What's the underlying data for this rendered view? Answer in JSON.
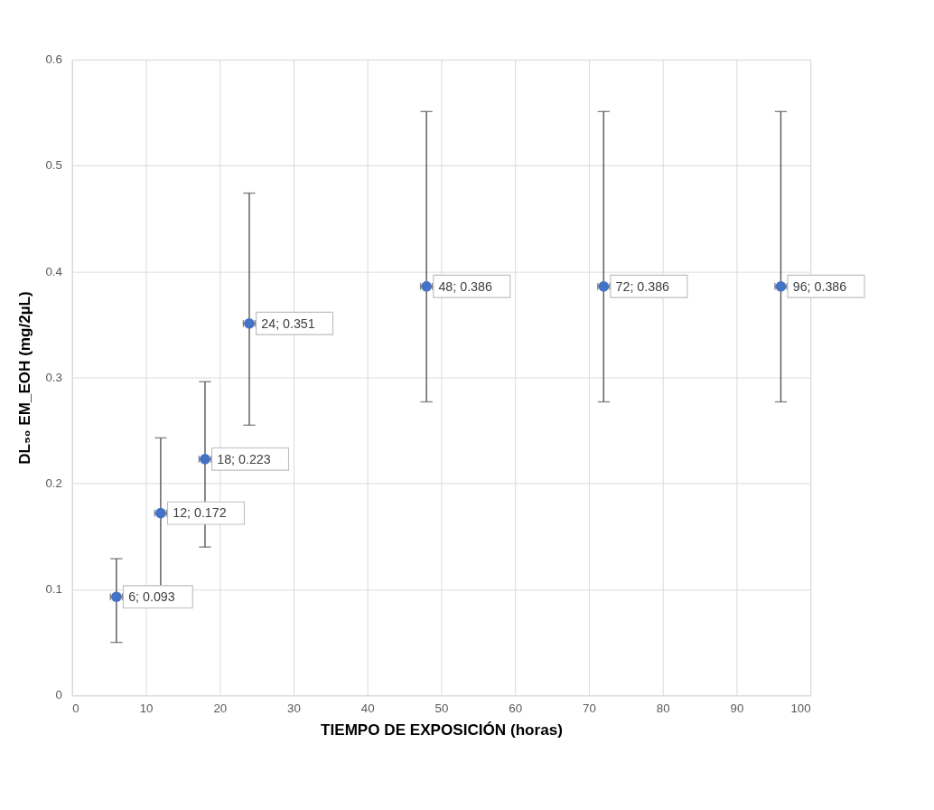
{
  "chart_data": {
    "type": "scatter",
    "xlabel": "TIEMPO DE EXPOSICIÓN (horas)",
    "ylabel": "DL₅₀ EM_EOH (mg/2µL)",
    "x": [
      6,
      12,
      18,
      24,
      48,
      72,
      96
    ],
    "series": [
      {
        "color": "#4472c4",
        "values": [
          0.093,
          0.172,
          0.223,
          0.351,
          0.386,
          0.386,
          0.386
        ],
        "errors": [
          [
            0.05,
            0.129
          ],
          [
            0.101,
            0.243
          ],
          [
            0.14,
            0.296
          ],
          [
            0.255,
            0.474
          ],
          [
            0.277,
            0.551
          ],
          [
            0.277,
            0.551
          ],
          [
            0.277,
            0.551
          ]
        ],
        "xerrors": [
          0.8,
          0.8,
          0.8,
          0.8,
          0.8,
          0.8,
          0.8
        ],
        "value_labels": [
          "6; 0.093",
          "12; 0.172",
          "18; 0.223",
          "24; 0.351",
          "48; 0.386",
          "72; 0.386",
          "96; 0.386"
        ]
      }
    ],
    "xlim": [
      0,
      100
    ],
    "xticks": [
      0,
      10,
      20,
      30,
      40,
      50,
      60,
      70,
      80,
      90,
      100
    ],
    "ylim": [
      0,
      0.6
    ],
    "yticks": [
      0,
      0.1,
      0.2,
      0.3,
      0.4,
      0.5,
      0.6
    ],
    "grid": true,
    "marker": "circle"
  }
}
